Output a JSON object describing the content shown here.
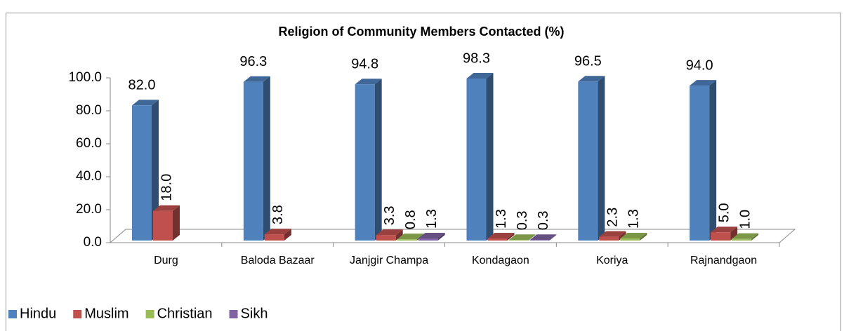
{
  "chart_data": {
    "type": "bar3d",
    "title": "Religion of Community Members Contacted (%)",
    "categories": [
      "Durg",
      "Baloda Bazaar",
      "Janjgir Champa",
      "Kondagaon",
      "Koriya",
      "Rajnandgaon"
    ],
    "series": [
      {
        "name": "Hindu",
        "color": "#4f81bd",
        "values": [
          82.0,
          96.3,
          94.8,
          98.3,
          96.5,
          94.0
        ],
        "value_labels": [
          "82.0",
          "96.3",
          "94.8",
          "98.3",
          "96.5",
          "94.0"
        ]
      },
      {
        "name": "Muslim",
        "color": "#c0504d",
        "values": [
          18.0,
          3.8,
          3.3,
          1.3,
          2.3,
          5.0
        ],
        "value_labels": [
          "18.0",
          "3.8",
          "3.3",
          "1.3",
          "2.3",
          "5.0"
        ]
      },
      {
        "name": "Christian",
        "color": "#9bbb59",
        "values": [
          null,
          null,
          0.8,
          0.3,
          1.3,
          1.0
        ],
        "value_labels": [
          null,
          null,
          "0.8",
          "0.3",
          "1.3",
          "1.0"
        ]
      },
      {
        "name": "Sikh",
        "color": "#8064a2",
        "values": [
          null,
          null,
          1.3,
          0.3,
          null,
          null
        ],
        "value_labels": [
          null,
          null,
          "1.3",
          "0.3",
          null,
          null
        ]
      }
    ],
    "ylim": [
      0,
      100
    ],
    "yticks": [
      {
        "value": 0,
        "label": "0.0"
      },
      {
        "value": 20,
        "label": "20.0"
      },
      {
        "value": 40,
        "label": "40.0"
      },
      {
        "value": 60,
        "label": "60.0"
      },
      {
        "value": 80,
        "label": "80.0"
      },
      {
        "value": 100,
        "label": "100.0"
      }
    ],
    "legend": "bottom-left"
  }
}
